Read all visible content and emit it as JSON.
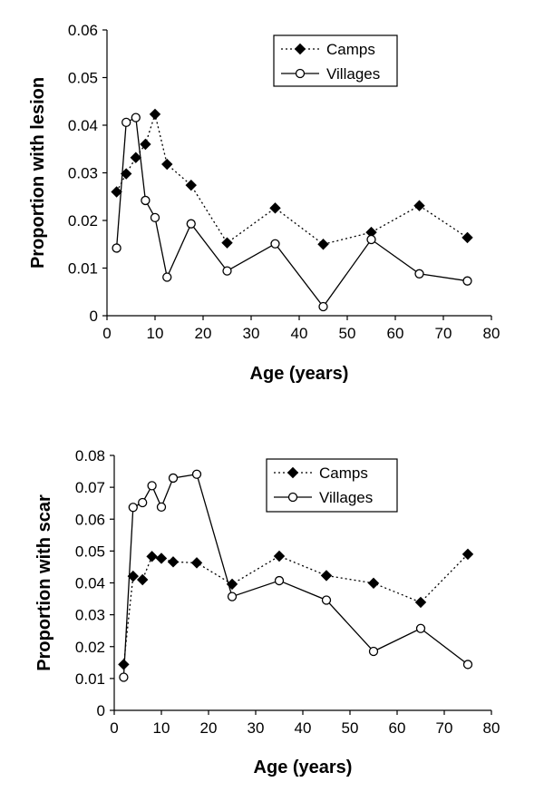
{
  "chart_data": [
    {
      "type": "line",
      "xlabel": "Age (years)",
      "ylabel": "Proportion with lesion",
      "xlim": [
        0,
        80
      ],
      "ylim": [
        0,
        0.06
      ],
      "xticks": [
        "0",
        "10",
        "20",
        "30",
        "40",
        "50",
        "60",
        "70",
        "80"
      ],
      "yticks": [
        "0",
        "0.01",
        "0.02",
        "0.03",
        "0.04",
        "0.05",
        "0.06"
      ],
      "legend_position": "top-right",
      "series": [
        {
          "name": "Camps",
          "style": "dotted",
          "marker": "filled-diamond",
          "x": [
            2,
            4,
            6,
            8,
            10,
            12.5,
            17.5,
            25,
            35,
            45,
            55,
            65,
            75
          ],
          "y": [
            0.026,
            0.0298,
            0.0332,
            0.036,
            0.0423,
            0.0318,
            0.0274,
            0.0153,
            0.0226,
            0.015,
            0.0175,
            0.0231,
            0.0164
          ]
        },
        {
          "name": "Villages",
          "style": "solid",
          "marker": "open-circle",
          "x": [
            2,
            4,
            6,
            8,
            10,
            12.5,
            17.5,
            25,
            35,
            45,
            55,
            65,
            75
          ],
          "y": [
            0.0142,
            0.0406,
            0.0416,
            0.0242,
            0.0206,
            0.0081,
            0.0193,
            0.0094,
            0.0151,
            0.0019,
            0.016,
            0.0088,
            0.0073
          ]
        }
      ]
    },
    {
      "type": "line",
      "xlabel": "Age (years)",
      "ylabel": "Proportion with scar",
      "xlim": [
        0,
        80
      ],
      "ylim": [
        0,
        0.08
      ],
      "xticks": [
        "0",
        "10",
        "20",
        "30",
        "40",
        "50",
        "60",
        "70",
        "80"
      ],
      "yticks": [
        "0",
        "0.01",
        "0.02",
        "0.03",
        "0.04",
        "0.05",
        "0.06",
        "0.07",
        "0.08"
      ],
      "legend_position": "top-right",
      "series": [
        {
          "name": "Camps",
          "style": "dotted",
          "marker": "filled-diamond",
          "x": [
            2,
            4,
            6,
            8,
            10,
            12.5,
            17.5,
            25,
            35,
            45,
            55,
            65,
            75
          ],
          "y": [
            0.0144,
            0.0421,
            0.041,
            0.0483,
            0.0477,
            0.0466,
            0.0463,
            0.0396,
            0.0484,
            0.0423,
            0.0399,
            0.0339,
            0.049
          ]
        },
        {
          "name": "Villages",
          "style": "solid",
          "marker": "open-circle",
          "x": [
            2,
            4,
            6,
            8,
            10,
            12.5,
            17.5,
            25,
            35,
            45,
            55,
            65,
            75
          ],
          "y": [
            0.0104,
            0.0637,
            0.0652,
            0.0705,
            0.0638,
            0.0729,
            0.0741,
            0.0357,
            0.0407,
            0.0346,
            0.0185,
            0.0257,
            0.0144
          ]
        }
      ]
    }
  ]
}
